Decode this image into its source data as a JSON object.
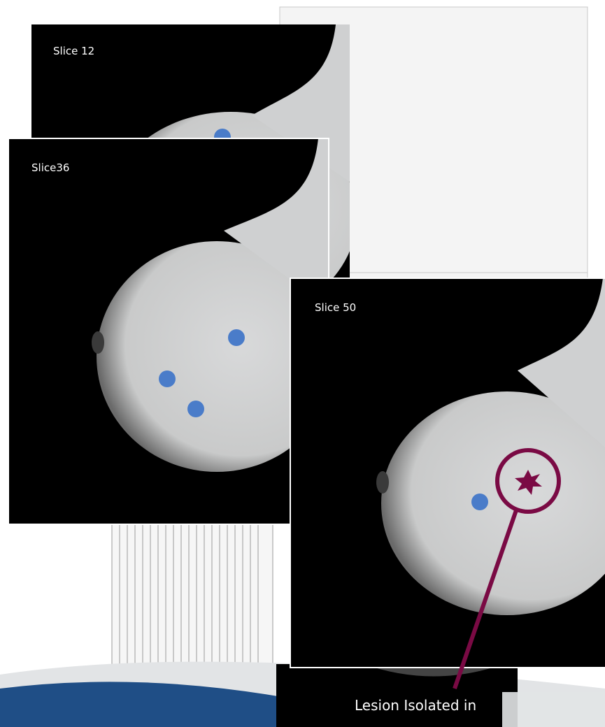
{
  "slices": [
    {
      "label": "Slice 12"
    },
    {
      "label": "Slice36"
    },
    {
      "label": "Slice 50"
    }
  ],
  "callout": {
    "label": "Lesion Isolated in"
  }
}
